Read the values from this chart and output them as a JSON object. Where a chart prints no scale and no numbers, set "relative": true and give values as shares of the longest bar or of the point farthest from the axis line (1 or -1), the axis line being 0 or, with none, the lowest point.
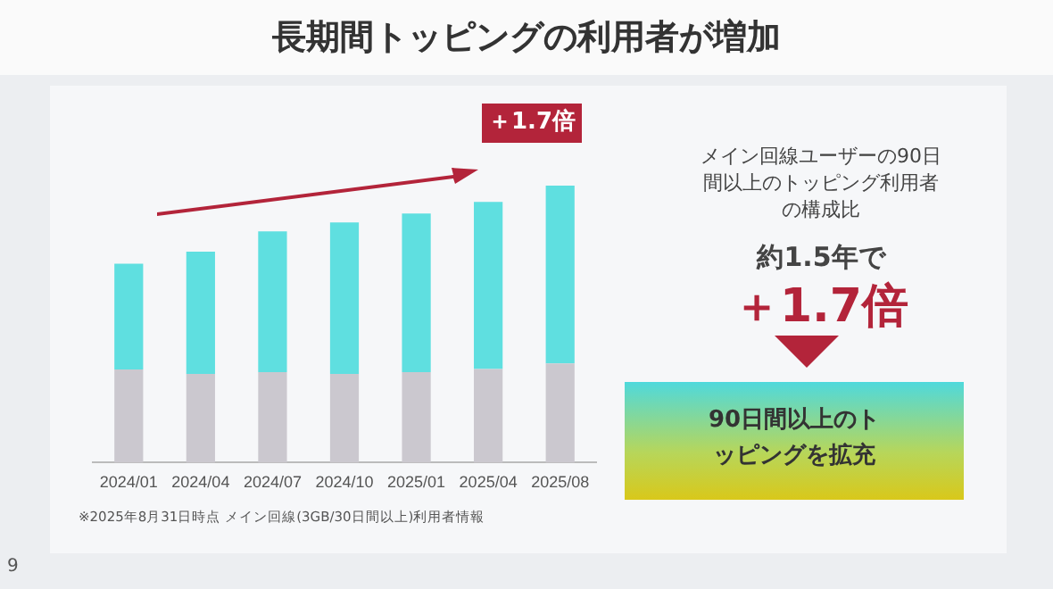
{
  "chart_data": {
    "type": "bar",
    "title": "長期間トッピングの利用者が増加",
    "categories": [
      "2024/01",
      "2024/04",
      "2024/07",
      "2024/10",
      "2025/01",
      "2025/04",
      "2025/08"
    ],
    "stacked": true,
    "relative": true,
    "grid": false,
    "legend": false,
    "series": [
      {
        "color": "#cbc8cf",
        "values": [
          0.336,
          0.32,
          0.327,
          0.32,
          0.327,
          0.338,
          0.358
        ]
      },
      {
        "color": "#5fdfe0",
        "values": [
          0.382,
          0.442,
          0.508,
          0.547,
          0.572,
          0.603,
          0.642
        ]
      }
    ],
    "annotations": [
      "＋1.7倍",
      "メイン回線ユーザーの90日間以上のトッピング利用者の構成比",
      "約1.5年で",
      "＋1.7倍",
      "90日間以上のトッピングを拡充",
      "※2025年8月31日時点 メイン回線(3GB/30日間以上)利用者情報",
      "9"
    ]
  }
}
